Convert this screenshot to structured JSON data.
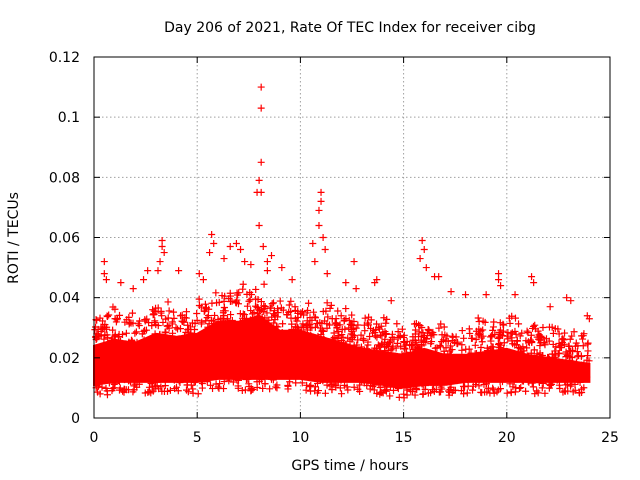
{
  "chart_data": {
    "type": "scatter",
    "title": "Day 206 of 2021, Rate Of TEC Index for receiver cibg",
    "xlabel": "GPS time / hours",
    "ylabel": "ROTI / TECUs",
    "xlim": [
      0,
      25
    ],
    "ylim": [
      0,
      0.12
    ],
    "x_ticks": [
      0,
      5,
      10,
      15,
      20,
      25
    ],
    "x_tick_labels": [
      "0",
      "5",
      "10",
      "15",
      "20",
      "25"
    ],
    "y_ticks": [
      0,
      0.02,
      0.04,
      0.06,
      0.08,
      0.1,
      0.12
    ],
    "y_tick_labels": [
      "0",
      "0.02",
      "0.04",
      "0.06",
      "0.08",
      "0.1",
      "0.12"
    ],
    "grid": true,
    "marker": "+",
    "color": "#ff0000",
    "series": [
      {
        "name": "ROTI",
        "band": {
          "x": [
            0,
            1,
            2,
            3,
            4,
            5,
            6,
            7,
            8,
            9,
            10,
            11,
            12,
            13,
            14,
            15,
            16,
            17,
            18,
            19,
            20,
            21,
            22,
            23,
            24
          ],
          "low": [
            0.007,
            0.008,
            0.008,
            0.008,
            0.008,
            0.008,
            0.009,
            0.009,
            0.009,
            0.009,
            0.009,
            0.008,
            0.008,
            0.008,
            0.007,
            0.006,
            0.007,
            0.007,
            0.008,
            0.008,
            0.008,
            0.008,
            0.008,
            0.008,
            0.008
          ],
          "high": [
            0.032,
            0.034,
            0.033,
            0.036,
            0.035,
            0.036,
            0.04,
            0.04,
            0.042,
            0.037,
            0.037,
            0.035,
            0.033,
            0.031,
            0.03,
            0.029,
            0.031,
            0.029,
            0.029,
            0.03,
            0.031,
            0.029,
            0.028,
            0.027,
            0.026
          ]
        },
        "outliers": [
          {
            "x": 0.5,
            "y": 0.052
          },
          {
            "x": 0.5,
            "y": 0.048
          },
          {
            "x": 0.6,
            "y": 0.046
          },
          {
            "x": 1.3,
            "y": 0.045
          },
          {
            "x": 1.9,
            "y": 0.043
          },
          {
            "x": 2.4,
            "y": 0.046
          },
          {
            "x": 2.6,
            "y": 0.049
          },
          {
            "x": 3.1,
            "y": 0.049
          },
          {
            "x": 3.3,
            "y": 0.059
          },
          {
            "x": 3.3,
            "y": 0.057
          },
          {
            "x": 3.4,
            "y": 0.055
          },
          {
            "x": 3.2,
            "y": 0.052
          },
          {
            "x": 4.1,
            "y": 0.049
          },
          {
            "x": 5.1,
            "y": 0.048
          },
          {
            "x": 5.3,
            "y": 0.046
          },
          {
            "x": 5.6,
            "y": 0.055
          },
          {
            "x": 5.7,
            "y": 0.061
          },
          {
            "x": 5.8,
            "y": 0.058
          },
          {
            "x": 6.3,
            "y": 0.053
          },
          {
            "x": 6.6,
            "y": 0.057
          },
          {
            "x": 6.9,
            "y": 0.058
          },
          {
            "x": 7.1,
            "y": 0.056
          },
          {
            "x": 7.3,
            "y": 0.052
          },
          {
            "x": 7.6,
            "y": 0.051
          },
          {
            "x": 7.9,
            "y": 0.075
          },
          {
            "x": 8.0,
            "y": 0.064
          },
          {
            "x": 8.0,
            "y": 0.079
          },
          {
            "x": 8.1,
            "y": 0.075
          },
          {
            "x": 8.1,
            "y": 0.085
          },
          {
            "x": 8.1,
            "y": 0.103
          },
          {
            "x": 8.1,
            "y": 0.11
          },
          {
            "x": 8.2,
            "y": 0.057
          },
          {
            "x": 8.4,
            "y": 0.052
          },
          {
            "x": 8.6,
            "y": 0.054
          },
          {
            "x": 8.4,
            "y": 0.049
          },
          {
            "x": 9.1,
            "y": 0.05
          },
          {
            "x": 9.6,
            "y": 0.046
          },
          {
            "x": 10.6,
            "y": 0.058
          },
          {
            "x": 10.7,
            "y": 0.052
          },
          {
            "x": 10.9,
            "y": 0.064
          },
          {
            "x": 10.9,
            "y": 0.069
          },
          {
            "x": 11.0,
            "y": 0.072
          },
          {
            "x": 11.0,
            "y": 0.075
          },
          {
            "x": 11.1,
            "y": 0.06
          },
          {
            "x": 11.2,
            "y": 0.056
          },
          {
            "x": 11.3,
            "y": 0.048
          },
          {
            "x": 12.2,
            "y": 0.045
          },
          {
            "x": 12.6,
            "y": 0.052
          },
          {
            "x": 12.7,
            "y": 0.043
          },
          {
            "x": 13.6,
            "y": 0.045
          },
          {
            "x": 13.7,
            "y": 0.046
          },
          {
            "x": 14.4,
            "y": 0.039
          },
          {
            "x": 15.9,
            "y": 0.059
          },
          {
            "x": 16.0,
            "y": 0.056
          },
          {
            "x": 15.8,
            "y": 0.053
          },
          {
            "x": 16.1,
            "y": 0.05
          },
          {
            "x": 16.5,
            "y": 0.047
          },
          {
            "x": 16.7,
            "y": 0.047
          },
          {
            "x": 17.3,
            "y": 0.042
          },
          {
            "x": 18.0,
            "y": 0.041
          },
          {
            "x": 19.0,
            "y": 0.041
          },
          {
            "x": 19.6,
            "y": 0.048
          },
          {
            "x": 19.6,
            "y": 0.046
          },
          {
            "x": 19.7,
            "y": 0.044
          },
          {
            "x": 20.4,
            "y": 0.041
          },
          {
            "x": 21.2,
            "y": 0.047
          },
          {
            "x": 21.3,
            "y": 0.045
          },
          {
            "x": 22.1,
            "y": 0.037
          },
          {
            "x": 22.9,
            "y": 0.04
          },
          {
            "x": 23.1,
            "y": 0.039
          },
          {
            "x": 23.9,
            "y": 0.034
          },
          {
            "x": 24.0,
            "y": 0.033
          }
        ]
      }
    ]
  }
}
